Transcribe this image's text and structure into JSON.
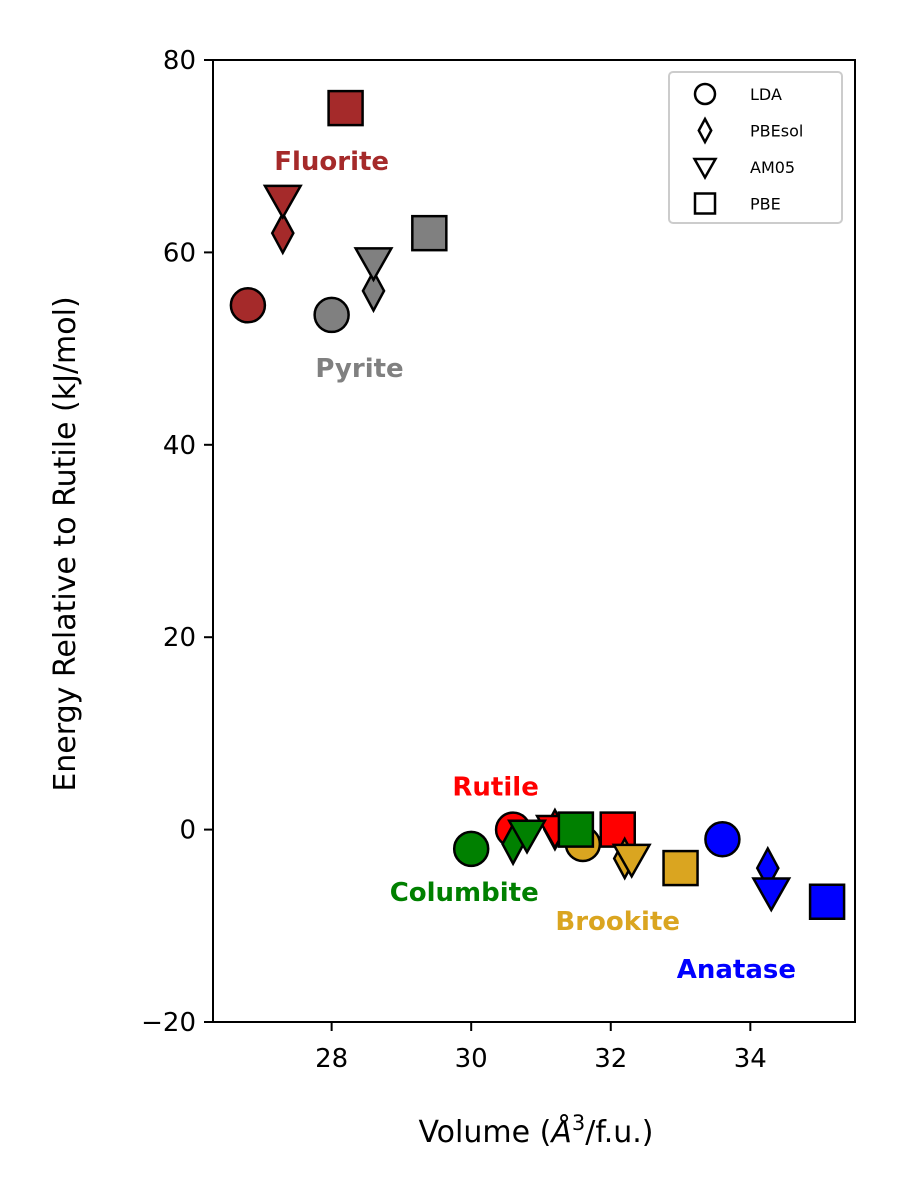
{
  "chart_data": {
    "type": "scatter",
    "xlabel": "Volume (Å³/f.u.)",
    "xlabel_main": "Volume (",
    "xlabel_italic": "Å",
    "xlabel_sup": "3",
    "xlabel_tail": "/f.u.)",
    "ylabel": "Energy Relative to Rutile (kJ/mol)",
    "xlim": [
      26.3,
      35.5
    ],
    "ylim": [
      -20,
      80
    ],
    "xticks": [
      28,
      30,
      32,
      34
    ],
    "yticks": [
      -20,
      0,
      20,
      40,
      60,
      80
    ],
    "xtick_labels": [
      "28",
      "30",
      "32",
      "34"
    ],
    "ytick_labels": [
      "−20",
      "0",
      "20",
      "40",
      "60",
      "80"
    ],
    "grid": false,
    "legend_position": "top-right",
    "legend": [
      {
        "marker": "circle",
        "label": "LDA"
      },
      {
        "marker": "diamond",
        "label": "PBEsol"
      },
      {
        "marker": "triangle-down",
        "label": "AM05"
      },
      {
        "marker": "square",
        "label": "PBE"
      }
    ],
    "series": [
      {
        "name": "Fluorite",
        "color": "#a52a2a",
        "label_pos": [
          28.0,
          69.5
        ],
        "points": [
          {
            "method": "LDA",
            "x": 26.8,
            "y": 54.5
          },
          {
            "method": "PBEsol",
            "x": 27.3,
            "y": 62.0
          },
          {
            "method": "AM05",
            "x": 27.3,
            "y": 65.5
          },
          {
            "method": "PBE",
            "x": 28.2,
            "y": 75.0
          }
        ]
      },
      {
        "name": "Pyrite",
        "color": "#808080",
        "label_pos": [
          28.4,
          48.0
        ],
        "points": [
          {
            "method": "LDA",
            "x": 28.0,
            "y": 53.5
          },
          {
            "method": "PBEsol",
            "x": 28.6,
            "y": 56.0
          },
          {
            "method": "AM05",
            "x": 28.6,
            "y": 59.0
          },
          {
            "method": "PBE",
            "x": 29.4,
            "y": 62.0
          }
        ]
      },
      {
        "name": "Rutile",
        "color": "#ff0000",
        "label_pos": [
          30.35,
          4.5
        ],
        "points": [
          {
            "method": "LDA",
            "x": 30.6,
            "y": 0.0
          },
          {
            "method": "PBEsol",
            "x": 31.2,
            "y": 0.0
          },
          {
            "method": "AM05",
            "x": 31.2,
            "y": 0.0
          },
          {
            "method": "PBE",
            "x": 32.1,
            "y": 0.0
          }
        ]
      },
      {
        "name": "Brookite",
        "color": "#daa520",
        "label_pos": [
          32.1,
          -9.5
        ],
        "points": [
          {
            "method": "LDA",
            "x": 31.6,
            "y": -1.5
          },
          {
            "method": "PBEsol",
            "x": 32.2,
            "y": -3.0
          },
          {
            "method": "AM05",
            "x": 32.3,
            "y": -3.0
          },
          {
            "method": "PBE",
            "x": 33.0,
            "y": -4.0
          }
        ]
      },
      {
        "name": "Columbite",
        "color": "#008000",
        "label_pos": [
          29.9,
          -6.5
        ],
        "points": [
          {
            "method": "LDA",
            "x": 30.0,
            "y": -2.0
          },
          {
            "method": "PBEsol",
            "x": 30.6,
            "y": -1.5
          },
          {
            "method": "AM05",
            "x": 30.8,
            "y": -0.5
          },
          {
            "method": "PBE",
            "x": 31.5,
            "y": 0.0
          }
        ]
      },
      {
        "name": "Anatase",
        "color": "#0000ff",
        "label_pos": [
          33.8,
          -14.5
        ],
        "points": [
          {
            "method": "LDA",
            "x": 33.6,
            "y": -1.0
          },
          {
            "method": "PBEsol",
            "x": 34.25,
            "y": -4.0
          },
          {
            "method": "AM05",
            "x": 34.3,
            "y": -6.5
          },
          {
            "method": "PBE",
            "x": 35.1,
            "y": -7.5
          }
        ]
      }
    ]
  }
}
